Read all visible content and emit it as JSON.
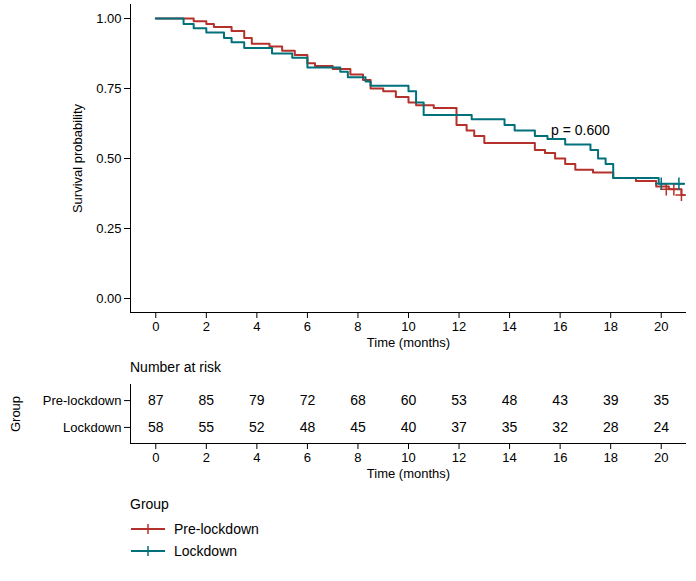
{
  "chart_data": {
    "type": "line",
    "line_style": "step",
    "x_label": "Time (months)",
    "y_label": "Survival probability",
    "xlim": [
      -1,
      21
    ],
    "xticks": [
      0,
      2,
      4,
      6,
      8,
      10,
      12,
      14,
      16,
      18,
      20
    ],
    "ylim": [
      -0.05,
      1.05
    ],
    "yticks": [
      {
        "value": 0,
        "label": "0.00"
      },
      {
        "value": 0.25,
        "label": "0.25"
      },
      {
        "value": 0.5,
        "label": "0.50"
      },
      {
        "value": 0.75,
        "label": "0.75"
      },
      {
        "value": 1,
        "label": "1.00"
      }
    ],
    "legend": "bottom",
    "legend_title": "Group",
    "annotations": [
      {
        "text": "p = 0.600",
        "x": 16.8,
        "y": 0.6
      }
    ],
    "series": [
      {
        "name": "Pre-lockdown",
        "color": "#b5312b",
        "marker": "+",
        "x": [
          0,
          1.5,
          2,
          2.3,
          3,
          3.5,
          3.8,
          4.5,
          5,
          5.5,
          6,
          6.3,
          7,
          7.7,
          8.2,
          8.5,
          9,
          9.5,
          10,
          10.3,
          11,
          11.9,
          12.3,
          12.6,
          13,
          15,
          15.4,
          15.8,
          16.2,
          16.6,
          17.3,
          18.1,
          19,
          19.8,
          20.3,
          20.8,
          20.9
        ],
        "values": [
          1,
          0.99,
          0.98,
          0.97,
          0.955,
          0.93,
          0.91,
          0.9,
          0.885,
          0.87,
          0.84,
          0.83,
          0.82,
          0.8,
          0.78,
          0.75,
          0.74,
          0.72,
          0.7,
          0.69,
          0.68,
          0.62,
          0.6,
          0.58,
          0.555,
          0.53,
          0.52,
          0.5,
          0.48,
          0.46,
          0.45,
          0.43,
          0.42,
          0.4,
          0.39,
          0.37,
          0.37
        ],
        "censored_x": [
          20.2,
          20.5,
          20.8
        ],
        "censored_values": [
          0.39,
          0.39,
          0.37
        ]
      },
      {
        "name": "Lockdown",
        "color": "#00707a",
        "marker": "+",
        "x": [
          0,
          1.1,
          1.5,
          2,
          2.7,
          3,
          3.5,
          4.6,
          5.4,
          6,
          7.3,
          7.6,
          8.3,
          8.5,
          10,
          10.3,
          10.6,
          12.5,
          13.8,
          14.2,
          15,
          15.5,
          16.2,
          17.2,
          17.5,
          17.8,
          18.1,
          19.9,
          20.9
        ],
        "values": [
          1,
          0.98,
          0.965,
          0.95,
          0.93,
          0.915,
          0.895,
          0.875,
          0.86,
          0.825,
          0.81,
          0.79,
          0.775,
          0.76,
          0.74,
          0.7,
          0.655,
          0.64,
          0.62,
          0.6,
          0.58,
          0.57,
          0.55,
          0.53,
          0.5,
          0.48,
          0.43,
          0.41,
          0.41
        ],
        "censored_x": [
          20.0,
          20.7
        ],
        "censored_values": [
          0.41,
          0.41
        ]
      }
    ],
    "risk_table": {
      "title": "Number at risk",
      "y_label": "Group",
      "x_label": "Time (months)",
      "x": [
        0,
        2,
        4,
        6,
        8,
        10,
        12,
        14,
        16,
        18,
        20
      ],
      "rows": [
        {
          "name": "Pre-lockdown",
          "values": [
            87,
            85,
            79,
            72,
            68,
            60,
            53,
            48,
            43,
            39,
            35
          ]
        },
        {
          "name": "Lockdown",
          "values": [
            58,
            55,
            52,
            48,
            45,
            40,
            37,
            35,
            32,
            28,
            24
          ]
        }
      ]
    }
  }
}
